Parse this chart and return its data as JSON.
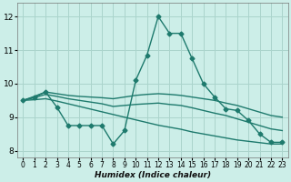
{
  "xlabel": "Humidex (Indice chaleur)",
  "background_color": "#cceee8",
  "grid_color": "#aad4cc",
  "line_color": "#1e7a6d",
  "xlim": [
    -0.5,
    23.5
  ],
  "ylim": [
    7.8,
    12.4
  ],
  "xticks": [
    0,
    1,
    2,
    3,
    4,
    5,
    6,
    7,
    8,
    9,
    10,
    11,
    12,
    13,
    14,
    15,
    16,
    17,
    18,
    19,
    20,
    21,
    22,
    23
  ],
  "yticks": [
    8,
    9,
    10,
    11,
    12
  ],
  "series": [
    {
      "x": [
        0,
        1,
        2,
        3,
        4,
        5,
        6,
        7,
        8,
        9,
        10,
        11,
        12,
        13,
        14,
        15,
        16,
        17,
        18,
        19,
        20,
        21,
        22,
        23
      ],
      "y": [
        9.5,
        9.6,
        9.75,
        9.3,
        8.75,
        8.75,
        8.75,
        8.75,
        8.2,
        8.6,
        10.1,
        10.85,
        12.0,
        11.5,
        11.5,
        10.75,
        10.0,
        9.6,
        9.25,
        9.2,
        8.9,
        8.5,
        8.25,
        8.25
      ],
      "marker": "D",
      "markersize": 2.5,
      "linewidth": 1.0
    },
    {
      "x": [
        0,
        1,
        2,
        3,
        4,
        5,
        6,
        7,
        8,
        9,
        10,
        11,
        12,
        13,
        14,
        15,
        16,
        17,
        18,
        19,
        20,
        21,
        22,
        23
      ],
      "y": [
        9.5,
        9.62,
        9.75,
        9.7,
        9.65,
        9.62,
        9.6,
        9.58,
        9.55,
        9.6,
        9.65,
        9.68,
        9.7,
        9.68,
        9.65,
        9.6,
        9.55,
        9.5,
        9.42,
        9.35,
        9.25,
        9.15,
        9.05,
        9.0
      ],
      "marker": "",
      "markersize": 0,
      "linewidth": 1.0
    },
    {
      "x": [
        0,
        1,
        2,
        3,
        4,
        5,
        6,
        7,
        8,
        9,
        10,
        11,
        12,
        13,
        14,
        15,
        16,
        17,
        18,
        19,
        20,
        21,
        22,
        23
      ],
      "y": [
        9.5,
        9.58,
        9.68,
        9.62,
        9.55,
        9.5,
        9.45,
        9.4,
        9.32,
        9.35,
        9.38,
        9.4,
        9.42,
        9.38,
        9.35,
        9.28,
        9.2,
        9.12,
        9.05,
        8.95,
        8.85,
        8.75,
        8.65,
        8.6
      ],
      "marker": "",
      "markersize": 0,
      "linewidth": 1.0
    },
    {
      "x": [
        0,
        1,
        2,
        3,
        4,
        5,
        6,
        7,
        8,
        9,
        10,
        11,
        12,
        13,
        14,
        15,
        16,
        17,
        18,
        19,
        20,
        21,
        22,
        23
      ],
      "y": [
        9.5,
        9.52,
        9.55,
        9.48,
        9.4,
        9.32,
        9.24,
        9.16,
        9.08,
        9.0,
        8.92,
        8.84,
        8.76,
        8.7,
        8.64,
        8.56,
        8.5,
        8.44,
        8.38,
        8.32,
        8.28,
        8.24,
        8.2,
        8.2
      ],
      "marker": "",
      "markersize": 0,
      "linewidth": 1.0
    }
  ]
}
